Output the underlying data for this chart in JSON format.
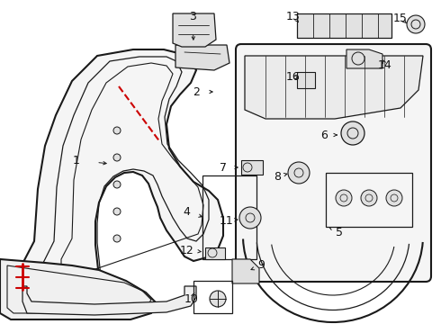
{
  "bg_color": "#ffffff",
  "line_color": "#1a1a1a",
  "red_color": "#cc0000",
  "label_color": "#111111",
  "fig_width": 4.9,
  "fig_height": 3.6,
  "dpi": 100
}
